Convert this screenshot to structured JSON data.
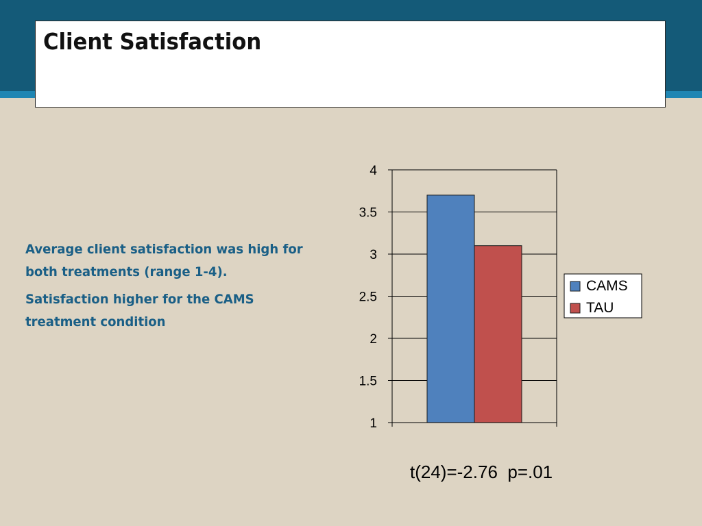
{
  "slide": {
    "title": "Client Satisfaction",
    "bullets": [
      "Average client satisfaction was high for both treatments (range 1-4).",
      "Satisfaction higher for the CAMS treatment condition"
    ],
    "stat_line": "t(24)=-2.76  p=.01"
  },
  "colors": {
    "band": "#145a78",
    "stripe": "#1f86b3",
    "background": "#ddd4c3",
    "text_accent": "#1a5f86"
  },
  "chart_data": {
    "type": "bar",
    "categories": [
      ""
    ],
    "series": [
      {
        "name": "CAMS",
        "values": [
          3.7
        ],
        "color": "#4f81bd"
      },
      {
        "name": "TAU",
        "values": [
          3.1
        ],
        "color": "#c0504d"
      }
    ],
    "ylim": [
      1,
      4
    ],
    "yticks": [
      1,
      1.5,
      2,
      2.5,
      3,
      3.5,
      4
    ],
    "ytick_labels": [
      "1",
      "1.5",
      "2",
      "2.5",
      "3",
      "3.5",
      "4"
    ],
    "grid": true,
    "legend": "right"
  }
}
